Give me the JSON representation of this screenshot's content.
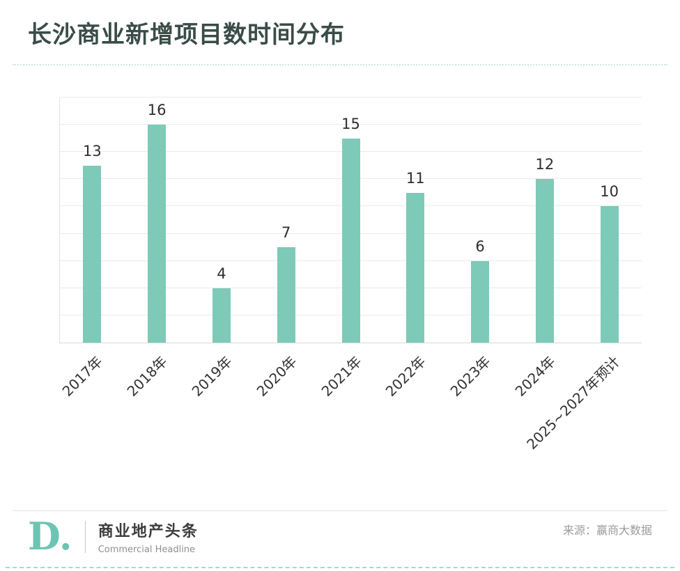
{
  "title": "长沙商业新增项目数时间分布",
  "chart_data": {
    "type": "bar",
    "title": "长沙商业新增项目数时间分布",
    "categories": [
      "2017年",
      "2018年",
      "2019年",
      "2020年",
      "2021年",
      "2022年",
      "2023年",
      "2024年",
      "2025~2027年预计"
    ],
    "values": [
      13,
      16,
      4,
      7,
      15,
      11,
      6,
      12,
      10
    ],
    "xlabel": "",
    "ylabel": "",
    "ylim": [
      0,
      18
    ],
    "ytick_step": 2,
    "grid": true,
    "legend": false,
    "bar_color": "#7dcab8"
  },
  "footer": {
    "logo_text": "D.",
    "brand_name": "商业地产头条",
    "brand_subtitle": "Commercial Headline",
    "source": "来源：赢商大数据"
  },
  "colors": {
    "bar": "#7dcab8",
    "title": "#3a4c48",
    "accent": "#7dcab8",
    "logo": "#6cc5b2",
    "gridline": "#eaeaea"
  }
}
